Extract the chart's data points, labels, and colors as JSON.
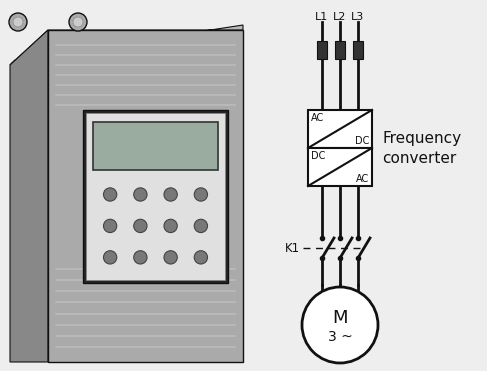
{
  "bg_color": "#eeeeee",
  "line_color": "#111111",
  "label_l1": "L1",
  "label_l2": "L2",
  "label_l3": "L3",
  "label_freq1": "Frequency",
  "label_freq2": "converter",
  "label_k1": "K1",
  "label_m": "M",
  "label_3tilde": "3 ~",
  "label_ac": "AC",
  "label_dc": "DC",
  "figsize": [
    4.87,
    3.71
  ],
  "dpi": 100,
  "device_front": "#aaaaaa",
  "device_side": "#888888",
  "device_top": "#c0c0c0",
  "device_top_slant": "#b8b8b8",
  "panel_bg": "#d8d8d8",
  "panel_face": "#e0e0e0",
  "lcd_color": "#b8c8b8",
  "button_color": "#787878",
  "vent_color": "#999999"
}
